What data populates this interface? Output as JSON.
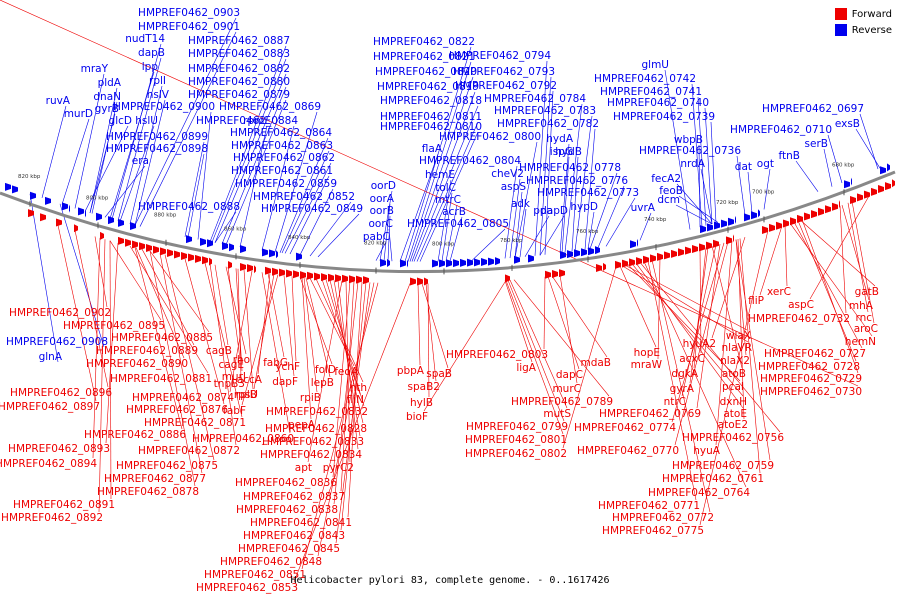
{
  "legend": {
    "forward_label": "Forward",
    "reverse_label": "Reverse"
  },
  "colors": {
    "forward": "#ee0000",
    "reverse": "#0000ee",
    "backbone": "#888888"
  },
  "caption": "Helicobacter pylori 83, complete genome. - 0..1617426",
  "ticks": [
    "820 kbp",
    "800 kbp",
    "880 kbp",
    "860 kbp",
    "840 kbp",
    "820 kbp",
    "800 kbp",
    "780 kbp",
    "760 kbp",
    "740 kbp",
    "720 kbp",
    "700 kbp",
    "680 kbp"
  ],
  "reverse_labels": [
    "HMPREF0462_0903",
    "HMPREF0462_0901",
    "nudT14",
    "HMPREF0462_0887",
    "dapB",
    "HMPREF0462_0883",
    "lpp",
    "HMPREF0462_0882",
    "mraY",
    "rplI",
    "HMPREF0462_0880",
    "pldA",
    "hslV",
    "HMPREF0462_0879",
    "dnaN",
    "HMPREF0462_0900",
    "gyrB",
    "HMPREF0462_0884",
    "rpmE",
    "ruvA",
    "glcD",
    "hslU",
    "HMPREF0462_0869",
    "murD",
    "HMPREF0462_0899",
    "HMPREF0462_0864",
    "HMPREF0462_0898",
    "HMPREF0462_0863",
    "era",
    "HMPREF0462_0862",
    "HMPREF0462_0861",
    "HMPREF0462_0859",
    "HMPREF0462_0852",
    "HMPREF0462_0888",
    "HMPREF0462_0849",
    "HMPREF0462_0822",
    "HMPREF0462_0821",
    "HMPREF0462_0820",
    "HMPREF0462_0819",
    "HMPREF0462_0818",
    "HMPREF0462_0811",
    "HMPREF0462_0810",
    "flaA",
    "hemE",
    "tolC",
    "mtrC",
    "acrB",
    "HMPREF0462_0805",
    "oorD",
    "oorA",
    "oorB",
    "oorC",
    "pabC",
    "HMPREF0462_0794",
    "HMPREF0462_0793",
    "HMPREF0462_0792",
    "HMPREF0462_0784",
    "HMPREF0462_0783",
    "HMPREF0462_0782",
    "hydA",
    "HMPREF0462_0800",
    "ispG",
    "hydB",
    "HMPREF0462_0804",
    "cheV2",
    "HMPREF0462_0778",
    "aspS",
    "HMPREF0462_0776",
    "HMPREF0462_0773",
    "adk",
    "ppa",
    "dapD",
    "hypD",
    "glmU",
    "HMPREF0462_0742",
    "HMPREF0462_0741",
    "HMPREF0462_0740",
    "HMPREF0462_0739",
    "wbpB",
    "HMPREF0462_0736",
    "nrdA",
    "dat",
    "ogt",
    "fecA2",
    "feoB",
    "dcm",
    "uvrA",
    "HMPREF0462_0697",
    "HMPREF0462_0710",
    "exsB",
    "serB",
    "ftnB",
    "glnA",
    "HMPREF0462_0908"
  ],
  "forward_labels": [
    "HMPREF0462_0902",
    "HMPREF0462_0895",
    "HMPREF0462_0885",
    "HMPREF0462_0889",
    "HMPREF0462_0890",
    "HMPREF0462_0896",
    "HMPREF0462_0881",
    "HMPREF0462_0897",
    "HMPREF0462_0876",
    "HMPREF0462_0871",
    "HMPREF0462_0886",
    "HMPREF0462_0893",
    "HMPREF0462_0872",
    "HMPREF0462_0894",
    "HMPREF0462_0875",
    "HMPREF0462_0877",
    "HMPREF0462_0878",
    "HMPREF0462_0891",
    "HMPREF0462_0892",
    "cagB",
    "rho",
    "cagE",
    "murI",
    "tnpB3",
    "rplB",
    "HMPREF0462_0874",
    "HMPREF0462_0860",
    "fabG",
    "accA",
    "rpsU",
    "fabF",
    "dapF",
    "ychF",
    "folD",
    "pepA",
    "rpiB",
    "lepB",
    "feoA",
    "nth",
    "fliN",
    "HMPREF0462_0832",
    "HMPREF0462_0828",
    "HMPREF0462_0833",
    "HMPREF0462_0834",
    "apt",
    "pyrC2",
    "HMPREF0462_0836",
    "HMPREF0462_0837",
    "HMPREF0462_0838",
    "HMPREF0462_0841",
    "HMPREF0462_0843",
    "HMPREF0462_0845",
    "HMPREF0462_0848",
    "HMPREF0462_0851",
    "HMPREF0462_0853",
    "pbpA",
    "spaB",
    "spaB2",
    "hylB",
    "bioF",
    "ligA",
    "HMPREF0462_0803",
    "dapC",
    "murC",
    "mdaB",
    "HMPREF0462_0789",
    "mutS",
    "HMPREF0462_0799",
    "HMPREF0462_0801",
    "HMPREF0462_0802",
    "hopE",
    "mraW",
    "acxC",
    "hyuA2",
    "nlaVR",
    "dgkA",
    "nlaX2",
    "wlaX",
    "gyrA",
    "atoB",
    "pcaI",
    "ntrC",
    "dxnH",
    "HMPREF0462_0769",
    "atoE",
    "HMPREF0462_0774",
    "atoE2",
    "HMPREF0462_0756",
    "HMPREF0462_0770",
    "hyuA",
    "HMPREF0462_0759",
    "HMPREF0462_0761",
    "HMPREF0462_0764",
    "HMPREF0462_0771",
    "HMPREF0462_0772",
    "HMPREF0462_0775",
    "fliP",
    "xerC",
    "aspC",
    "gatB",
    "HMPREF0462_0732",
    "mhA",
    "rnc",
    "aroC",
    "hemN",
    "HMPREF0462_0727",
    "HMPREF0462_0728",
    "HMPREF0462_0729",
    "HMPREF0462_0730"
  ]
}
